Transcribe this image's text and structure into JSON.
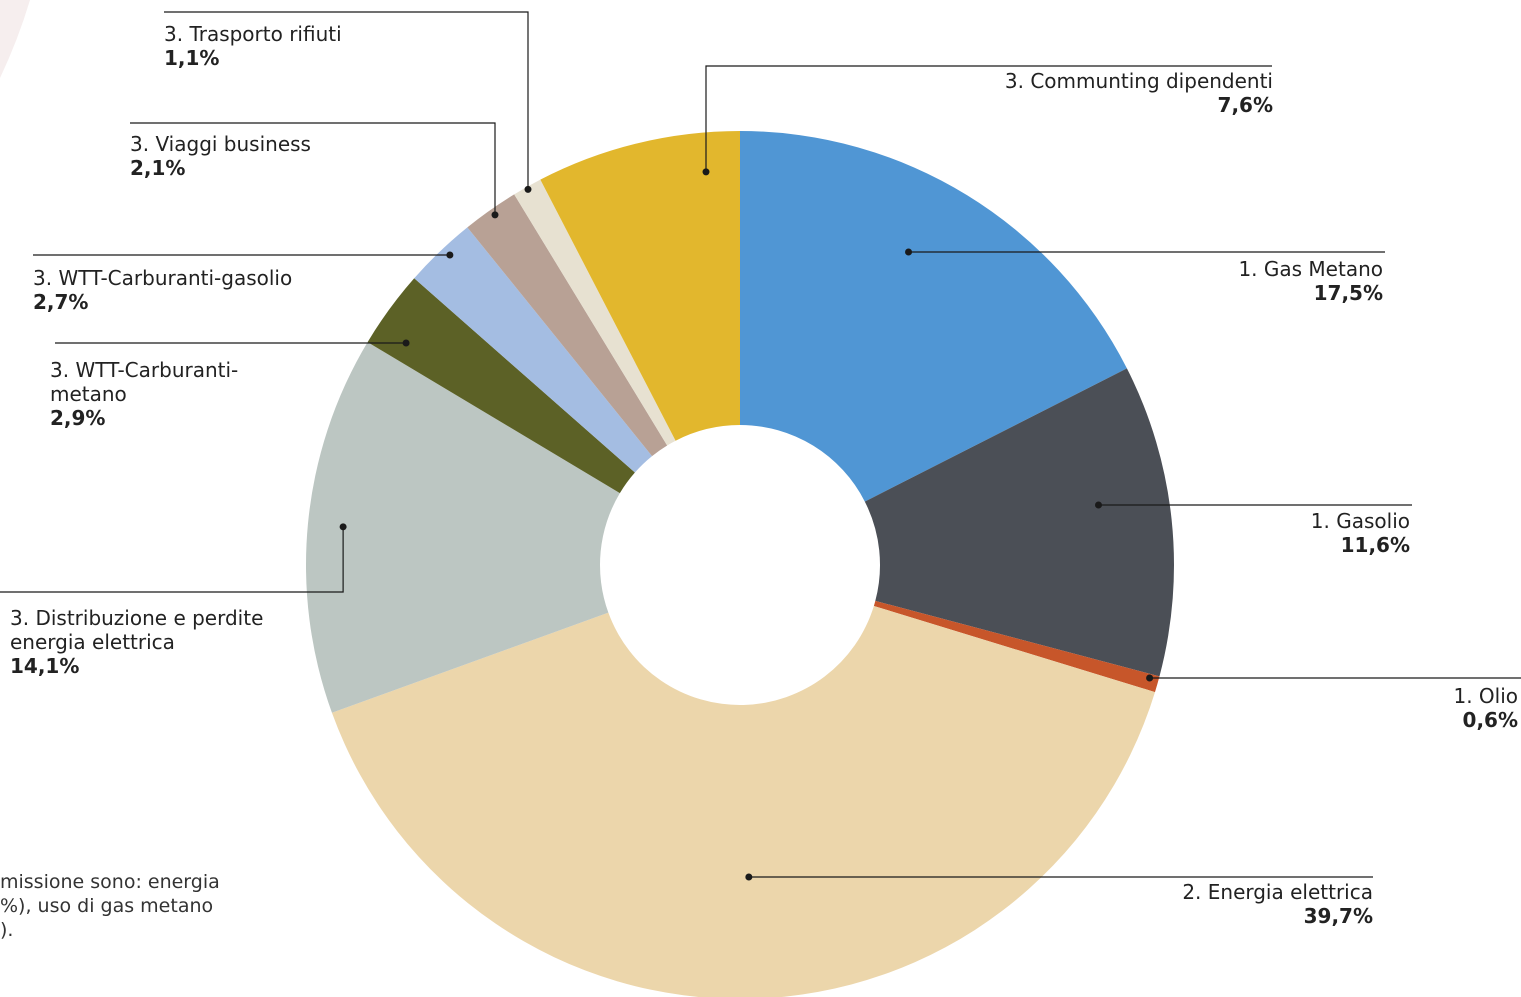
{
  "chart_data": {
    "type": "pie",
    "donut": true,
    "slices": [
      {
        "label": "1. Gas Metano",
        "value": 17.5,
        "display": "17,5%",
        "color": "#5096d4"
      },
      {
        "label": "1. Gasolio",
        "value": 11.6,
        "display": "11,6%",
        "color": "#4b4f56"
      },
      {
        "label": "1. Olio",
        "value": 0.6,
        "display": "0,6%",
        "color": "#c7562a"
      },
      {
        "label": "2. Energia elettrica",
        "value": 39.7,
        "display": "39,7%",
        "color": "#ecd6ab"
      },
      {
        "label": "3. Distribuzione e perdite energia elettrica",
        "value": 14.1,
        "display": "14,1%",
        "color": "#bcc6c2"
      },
      {
        "label": "3. WTT-Carburanti-metano",
        "value": 2.9,
        "display": "2,9%",
        "color": "#5c6126"
      },
      {
        "label": "3. WTT-Carburanti-gasolio",
        "value": 2.7,
        "display": "2,7%",
        "color": "#a4bde2"
      },
      {
        "label": "3. Viaggi business",
        "value": 2.1,
        "display": "2,1%",
        "color": "#b8a195"
      },
      {
        "label": "3. Trasporto rifiuti",
        "value": 1.1,
        "display": "1,1%",
        "color": "#e7e1d1"
      },
      {
        "label": "3. Communting dipendenti",
        "value": 7.6,
        "display": "7,6%",
        "color": "#e2b72d"
      }
    ]
  },
  "labels": {
    "gas_metano": {
      "name": "1. Gas Metano",
      "pct": "17,5%"
    },
    "gasolio": {
      "name": "1. Gasolio",
      "pct": "11,6%"
    },
    "olio": {
      "name": "1. Olio",
      "pct": "0,6%"
    },
    "energia": {
      "name": "2. Energia elettrica",
      "pct": "39,7%"
    },
    "distribuzione": {
      "name": "3. Distribuzione e perdite energia elettrica",
      "pct": "14,1%"
    },
    "wtt_metano": {
      "name": "3. WTT-Carburanti-metano",
      "pct": "2,9%"
    },
    "wtt_gasolio": {
      "name": "3. WTT-Carburanti-gasolio",
      "pct": "2,7%"
    },
    "viaggi": {
      "name": "3. Viaggi business",
      "pct": "2,1%"
    },
    "rifiuti": {
      "name": "3. Trasporto rifiuti",
      "pct": "1,1%"
    },
    "commuting": {
      "name": "3. Communting dipendenti",
      "pct": "7,6%"
    }
  },
  "footnote": {
    "line1": "missione sono: energia",
    "line2": "%), uso di gas metano",
    "line3": ")."
  }
}
